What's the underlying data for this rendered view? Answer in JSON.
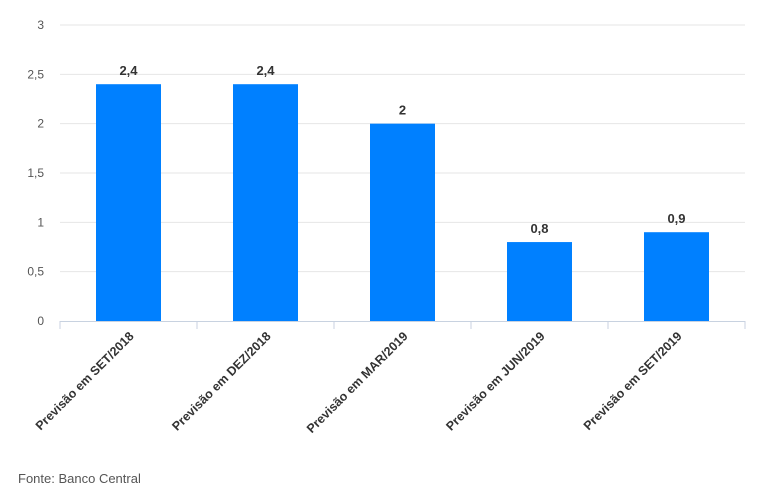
{
  "chart_data": {
    "type": "bar",
    "categories": [
      "Previsão em SET/2018",
      "Previsão em DEZ/2018",
      "Previsão em MAR/2019",
      "Previsão em JUN/2019",
      "Previsão em SET/2019"
    ],
    "values": [
      2.4,
      2.4,
      2,
      0.8,
      0.9
    ],
    "value_labels": [
      "2,4",
      "2,4",
      "2",
      "0,8",
      "0,9"
    ],
    "y_ticks": [
      "0",
      "0,5",
      "1",
      "1,5",
      "2",
      "2,5",
      "3"
    ],
    "ylim": [
      0,
      3
    ],
    "grid": true,
    "bar_color": "#0080ff"
  },
  "source": "Fonte: Banco Central"
}
